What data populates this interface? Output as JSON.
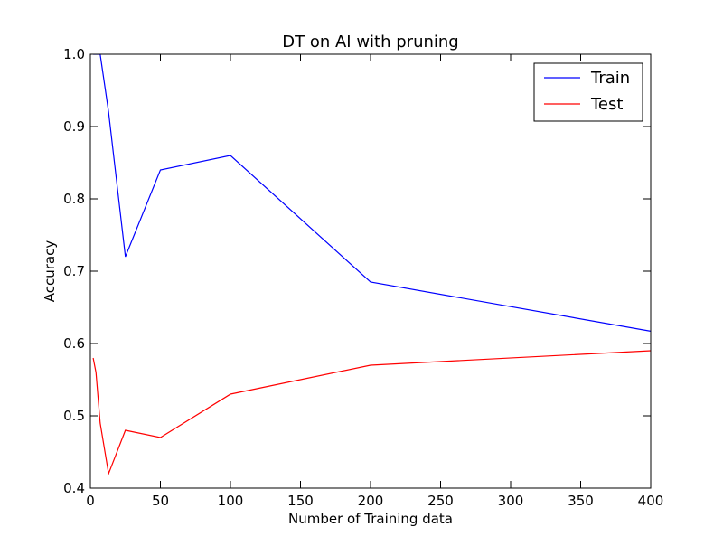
{
  "chart_data": {
    "type": "line",
    "title": "DT on AI with pruning",
    "xlabel": "Number of Training data",
    "ylabel": "Accuracy",
    "xlim": [
      0,
      400
    ],
    "ylim": [
      0.4,
      1.0
    ],
    "xticks": [
      "0",
      "50",
      "100",
      "150",
      "200",
      "250",
      "300",
      "350",
      "400"
    ],
    "yticks": [
      "0.4",
      "0.5",
      "0.6",
      "0.7",
      "0.8",
      "0.9",
      "1.0"
    ],
    "grid": false,
    "legend_position": "top-right",
    "series": [
      {
        "name": "Train",
        "color": "#0000ff",
        "x": [
          2,
          4,
          7,
          13,
          25,
          50,
          100,
          200,
          400
        ],
        "y": [
          1.0,
          1.0,
          1.0,
          0.92,
          0.72,
          0.84,
          0.86,
          0.685,
          0.617
        ]
      },
      {
        "name": "Test",
        "color": "#ff0000",
        "x": [
          2,
          4,
          7,
          13,
          25,
          50,
          100,
          200,
          400
        ],
        "y": [
          0.58,
          0.56,
          0.49,
          0.42,
          0.48,
          0.47,
          0.53,
          0.57,
          0.59
        ]
      }
    ]
  }
}
